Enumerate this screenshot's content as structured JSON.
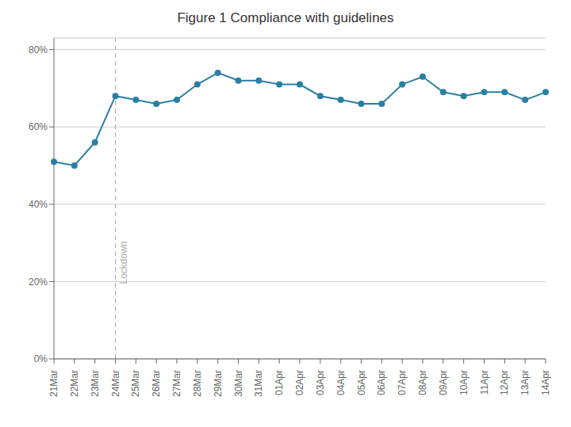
{
  "chart_data": {
    "type": "line",
    "title": "Figure 1 Compliance with guidelines",
    "categories": [
      "21Mar",
      "22Mar",
      "23Mar",
      "24Mar",
      "25Mar",
      "26Mar",
      "27Mar",
      "28Mar",
      "29Mar",
      "30Mar",
      "31Mar",
      "01Apr",
      "02Apr",
      "03Apr",
      "04Apr",
      "05Apr",
      "06Apr",
      "07Apr",
      "08Apr",
      "09Apr",
      "10Apr",
      "11Apr",
      "12Apr",
      "13Apr",
      "14Apr"
    ],
    "values": [
      51,
      50,
      56,
      68,
      67,
      66,
      67,
      71,
      74,
      72,
      72,
      71,
      71,
      68,
      67,
      66,
      66,
      71,
      73,
      69,
      68,
      69,
      69,
      67,
      69
    ],
    "color": "#2a7fa5",
    "marker": "circle",
    "ylim": [
      0,
      83
    ],
    "yticks": [
      {
        "value": 0,
        "label": "0%"
      },
      {
        "value": 20,
        "label": "20%"
      },
      {
        "value": 40,
        "label": "40%"
      },
      {
        "value": 60,
        "label": "60%"
      },
      {
        "value": 80,
        "label": "80%"
      }
    ],
    "grid": true,
    "annotations": [
      {
        "text": "Lockdown",
        "x": "24Mar",
        "color": "#aaaaaa",
        "line_style": "dashed"
      }
    ]
  }
}
